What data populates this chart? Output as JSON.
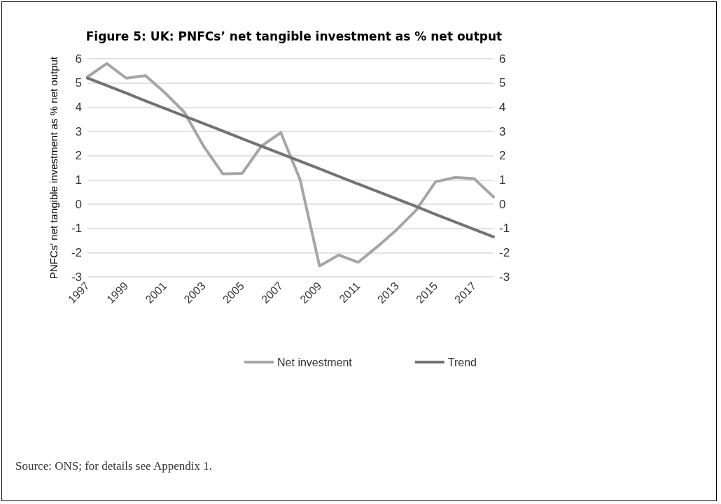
{
  "chart_data": {
    "type": "line",
    "title": "Figure 5: UK: PNFCs’ net tangible investment as % net output",
    "ylabel": "PNFCs' net tangible investment as % net output",
    "categories": [
      "1997",
      null,
      "1999",
      null,
      "2001",
      null,
      "2003",
      null,
      "2005",
      null,
      "2007",
      null,
      "2009",
      null,
      "2011",
      null,
      "2013",
      null,
      "2015",
      null,
      "2017",
      null
    ],
    "series": [
      {
        "name": "Net investment",
        "color": "#a5a5a5",
        "values": [
          5.25,
          5.8,
          5.2,
          5.3,
          4.6,
          3.8,
          2.4,
          1.25,
          1.27,
          2.4,
          2.95,
          1.0,
          -2.55,
          -2.1,
          -2.4,
          -1.75,
          -1.05,
          -0.25,
          0.92,
          1.1,
          1.05,
          0.3
        ]
      },
      {
        "name": "Trend",
        "color": "#767171",
        "values": [
          5.2,
          4.89,
          4.58,
          4.26,
          3.95,
          3.64,
          3.33,
          3.02,
          2.7,
          2.39,
          2.08,
          1.77,
          1.46,
          1.14,
          0.83,
          0.52,
          0.21,
          -0.1,
          -0.42,
          -0.73,
          -1.04,
          -1.35
        ]
      }
    ],
    "ylim": [
      -3,
      6
    ],
    "yticks": [
      -3,
      -2,
      -1,
      0,
      1,
      2,
      3,
      4,
      5,
      6
    ],
    "y2lim": [
      -3,
      6
    ],
    "y2ticks": [
      -3,
      -2,
      -1,
      0,
      1,
      2,
      3,
      4,
      5,
      6
    ],
    "grid": "y",
    "legend": "bottom",
    "marker": "none",
    "line_style": "solid",
    "annotations": [
      "Source: ONS; for details see Appendix 1."
    ]
  }
}
